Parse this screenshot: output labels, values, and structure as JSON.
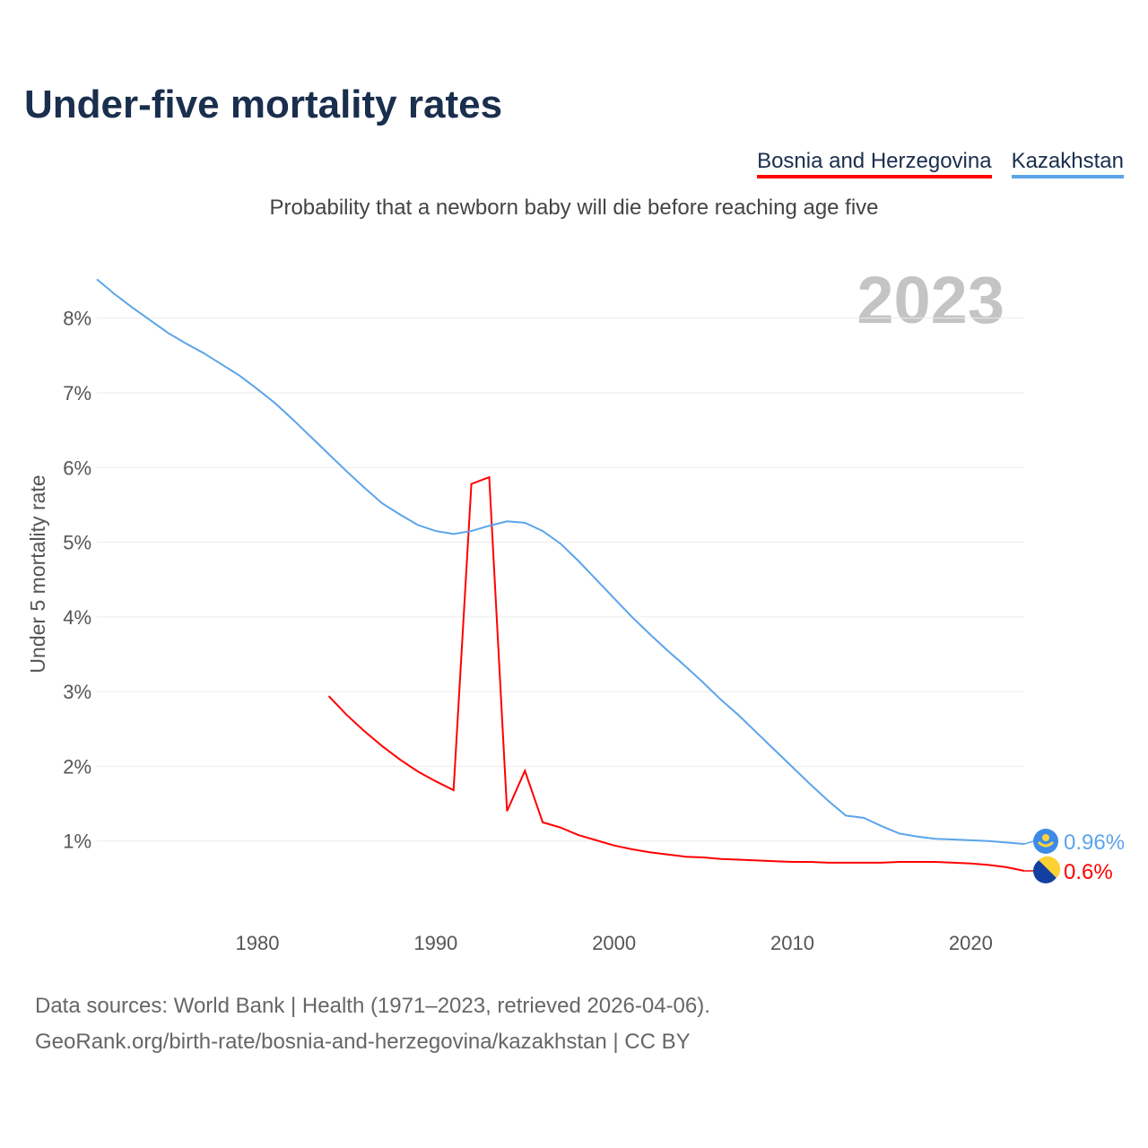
{
  "title": "Under-five mortality rates",
  "subtitle": "Probability that a newborn baby will die before reaching age five",
  "year_label": "2023",
  "sources": [
    "Data sources: World Bank | Health (1971–2023, retrieved 2026-04-06).",
    "GeoRank.org/birth-rate/bosnia-and-herzegovina/kazakhstan | CC BY"
  ],
  "chart_data": {
    "type": "line",
    "title": "Under-five mortality rates",
    "ylabel": "Under 5 mortality rate",
    "xlabel": "",
    "xlim": [
      1971,
      2023
    ],
    "ylim": [
      0,
      8.6
    ],
    "yticks": [
      1,
      2,
      3,
      4,
      5,
      6,
      7,
      8
    ],
    "ytick_labels": [
      "1%",
      "2%",
      "3%",
      "4%",
      "5%",
      "6%",
      "7%",
      "8%"
    ],
    "xticks": [
      1980,
      1990,
      2000,
      2010,
      2020
    ],
    "xtick_labels": [
      "1980",
      "1990",
      "2000",
      "2010",
      "2020"
    ],
    "grid": true,
    "legend_position": "top-right",
    "series": [
      {
        "name": "Bosnia and Herzegovina",
        "color": "#ff0000",
        "end_label": "0.6%",
        "flag": "bosnia-flag-icon",
        "start_year": 1984,
        "values": [
          2.94,
          2.69,
          2.47,
          2.27,
          2.09,
          1.93,
          1.8,
          1.68,
          5.78,
          5.87,
          1.4,
          1.94,
          1.25,
          1.18,
          1.08,
          1.01,
          0.94,
          0.89,
          0.85,
          0.82,
          0.79,
          0.78,
          0.76,
          0.75,
          0.74,
          0.73,
          0.72,
          0.72,
          0.71,
          0.71,
          0.71,
          0.71,
          0.72,
          0.72,
          0.72,
          0.71,
          0.7,
          0.68,
          0.65,
          0.6
        ]
      },
      {
        "name": "Kazakhstan",
        "color": "#5ba4ea",
        "end_label": "0.96%",
        "flag": "kazakhstan-flag-icon",
        "start_year": 1971,
        "values": [
          8.52,
          8.32,
          8.14,
          7.97,
          7.8,
          7.66,
          7.53,
          7.38,
          7.23,
          7.05,
          6.86,
          6.64,
          6.41,
          6.18,
          5.95,
          5.73,
          5.52,
          5.37,
          5.23,
          5.15,
          5.11,
          5.15,
          5.22,
          5.28,
          5.26,
          5.15,
          4.98,
          4.75,
          4.5,
          4.25,
          4.0,
          3.77,
          3.55,
          3.34,
          3.12,
          2.89,
          2.68,
          2.45,
          2.22,
          1.99,
          1.76,
          1.54,
          1.34,
          1.31,
          1.2,
          1.1,
          1.06,
          1.03,
          1.02,
          1.01,
          1.0,
          0.98,
          0.96
        ]
      }
    ]
  }
}
